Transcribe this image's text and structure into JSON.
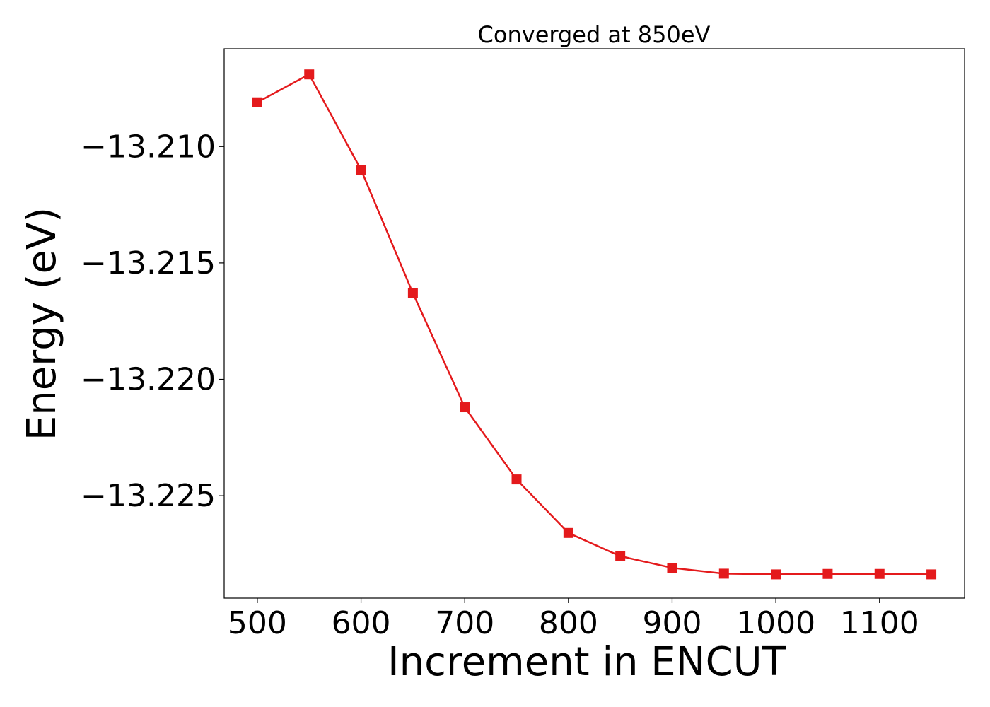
{
  "chart_data": {
    "type": "line",
    "title": "Converged at 850eV",
    "xlabel": "Increment in ENCUT",
    "ylabel": "Energy (eV)",
    "xlim": [
      468,
      1182
    ],
    "ylim": [
      -13.2294,
      -13.2058
    ],
    "xticks": [
      500,
      600,
      700,
      800,
      900,
      1000,
      1100
    ],
    "xtick_labels": [
      "500",
      "600",
      "700",
      "800",
      "900",
      "1000",
      "1100"
    ],
    "yticks": [
      -13.21,
      -13.215,
      -13.22,
      -13.225
    ],
    "ytick_labels": [
      "−13.210",
      "−13.215",
      "−13.220",
      "−13.225"
    ],
    "grid": false,
    "series": [
      {
        "color": "#e41a1c",
        "marker": "square",
        "x": [
          500,
          550,
          600,
          650,
          700,
          750,
          800,
          850,
          900,
          950,
          1000,
          1050,
          1100,
          1150
        ],
        "values": [
          -13.2081,
          -13.2069,
          -13.211,
          -13.2163,
          -13.2212,
          -13.2243,
          -13.2266,
          -13.2276,
          -13.2281,
          -13.22835,
          -13.22838,
          -13.22836,
          -13.22836,
          -13.22838
        ]
      }
    ]
  }
}
